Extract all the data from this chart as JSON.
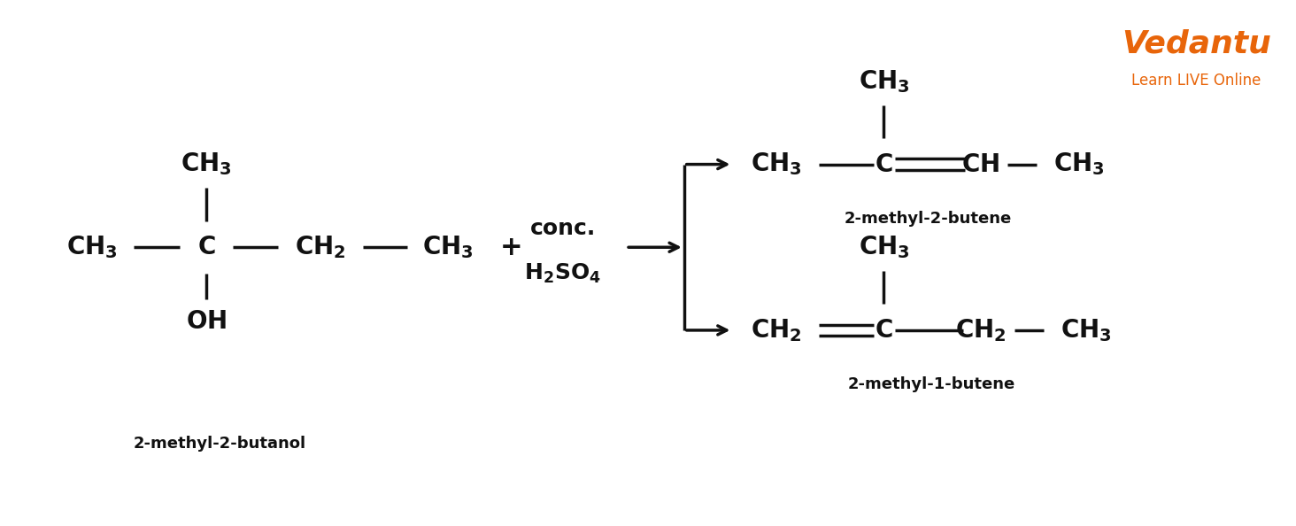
{
  "bg_color": "#ffffff",
  "text_color": "#111111",
  "orange_color": "#E8650A",
  "figsize": [
    14.64,
    5.94
  ],
  "dpi": 100,
  "font_size_main": 20,
  "font_size_label": 13,
  "font_size_reagent": 18,
  "reactant_name": "2-methyl-2-butanol",
  "product1_name": "2-methyl-2-butene",
  "product2_name": "2-methyl-1-butene",
  "vedantu_text": "Vedantu",
  "vedantu_sub": "Learn LIVE Online"
}
